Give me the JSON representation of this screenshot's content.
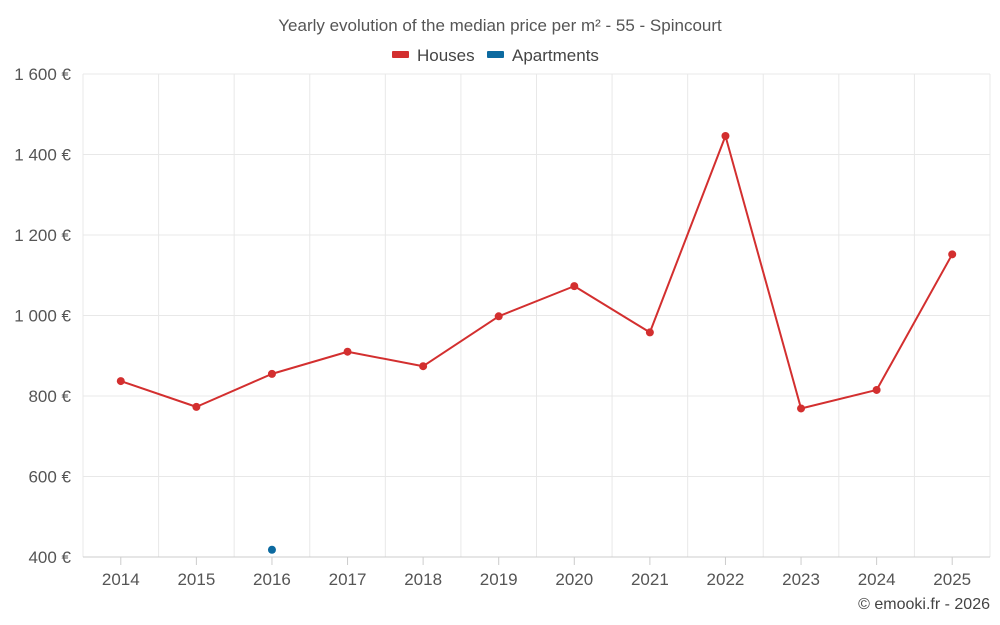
{
  "chart_data": {
    "type": "line",
    "title": "Yearly evolution of the median price per m² - 55 - Spincourt",
    "categories": [
      "2014",
      "2015",
      "2016",
      "2017",
      "2018",
      "2019",
      "2020",
      "2021",
      "2022",
      "2023",
      "2024",
      "2025"
    ],
    "series": [
      {
        "name": "Houses",
        "color": "#d32f2f",
        "values": [
          837,
          773,
          855,
          910,
          874,
          998,
          1073,
          958,
          1446,
          769,
          815,
          1152
        ]
      },
      {
        "name": "Apartments",
        "color": "#0c6aa0",
        "values": [
          null,
          null,
          418,
          null,
          null,
          null,
          null,
          null,
          null,
          null,
          null,
          null
        ]
      }
    ],
    "ylim": [
      400,
      1600
    ],
    "yticks": [
      400,
      600,
      800,
      1000,
      1200,
      1400,
      1600
    ],
    "ytick_labels": [
      "400 €",
      "600 €",
      "800 €",
      "1 000 €",
      "1 200 €",
      "1 400 €",
      "1 600 €"
    ],
    "xlabel": "",
    "ylabel": "",
    "grid": true,
    "legend_position": "top-center"
  },
  "credit": "© emooki.fr - 2026"
}
